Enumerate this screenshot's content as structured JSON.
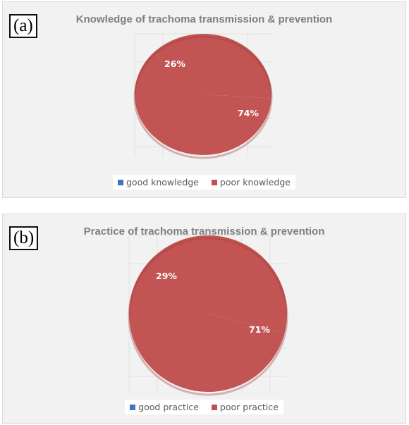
{
  "chart_data": [
    {
      "type": "pie",
      "panel_label": "(a)",
      "title": "Knowledge of trachoma transmission & prevention",
      "categories": [
        "good knowledge",
        "poor knowledge"
      ],
      "values": [
        26,
        74
      ],
      "labels": [
        "26%",
        "74%"
      ],
      "colors": [
        "#4472c4",
        "#c0504d"
      ],
      "legend_position": "bottom",
      "grid": true
    },
    {
      "type": "pie",
      "panel_label": "(b)",
      "title": "Practice of trachoma transmission & prevention",
      "categories": [
        "good practice",
        "poor practice"
      ],
      "values": [
        29,
        71
      ],
      "labels": [
        "29%",
        "71%"
      ],
      "colors": [
        "#4472c4",
        "#c0504d"
      ],
      "legend_position": "bottom",
      "grid": true
    }
  ]
}
